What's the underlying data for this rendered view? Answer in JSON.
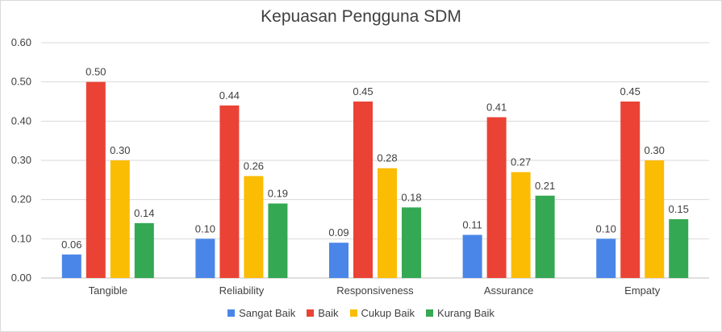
{
  "chart_data": {
    "type": "bar",
    "title": "Kepuasan Pengguna SDM",
    "categories": [
      "Tangible",
      "Reliability",
      "Responsiveness",
      "Assurance",
      "Empaty"
    ],
    "series": [
      {
        "name": "Sangat Baik",
        "color": "#4a86e8",
        "values": [
          0.06,
          0.1,
          0.09,
          0.11,
          0.1
        ]
      },
      {
        "name": "Baik",
        "color": "#ea4335",
        "values": [
          0.5,
          0.44,
          0.45,
          0.41,
          0.45
        ]
      },
      {
        "name": "Cukup Baik",
        "color": "#fbbc04",
        "values": [
          0.3,
          0.26,
          0.28,
          0.27,
          0.3
        ]
      },
      {
        "name": "Kurang Baik",
        "color": "#34a853",
        "values": [
          0.14,
          0.19,
          0.18,
          0.21,
          0.15
        ]
      }
    ],
    "ylim": [
      0,
      0.6
    ],
    "yticks": [
      "0.00",
      "0.10",
      "0.20",
      "0.30",
      "0.40",
      "0.50",
      "0.60"
    ],
    "grid": true,
    "legend_position": "bottom",
    "xlabel": "",
    "ylabel": ""
  }
}
